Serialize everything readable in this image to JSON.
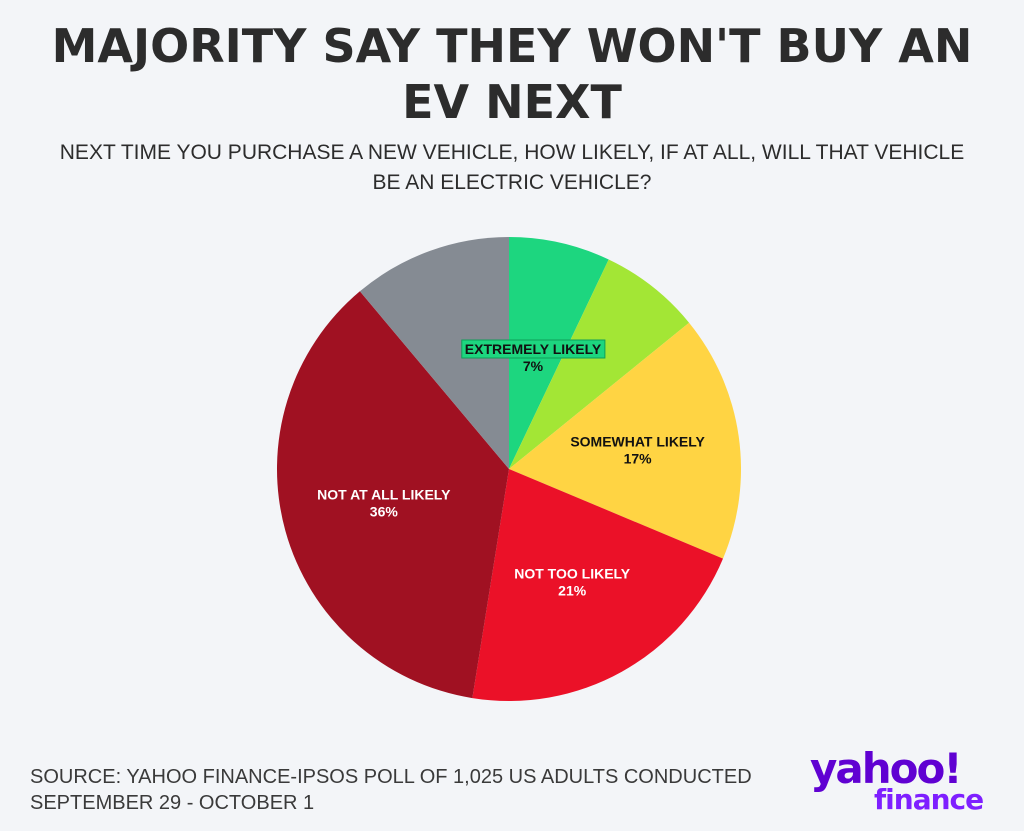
{
  "title": "MAJORITY SAY THEY WON'T BUY AN EV NEXT",
  "subtitle": "NEXT TIME YOU PURCHASE A NEW VEHICLE, HOW LIKELY, IF AT ALL, WILL THAT VEHICLE BE AN ELECTRIC VEHICLE?",
  "source": "SOURCE: YAHOO FINANCE-IPSOS POLL OF 1,025 US ADULTS CONDUCTED SEPTEMBER 29 - OCTOBER 1",
  "logo": {
    "brand": "yahoo!",
    "product": "finance",
    "color": "#6001d2"
  },
  "chart_data": {
    "type": "pie",
    "title": "MAJORITY SAY THEY WON'T BUY AN EV NEXT",
    "slices": [
      {
        "label": "EXTREMELY LIKELY",
        "value": 7,
        "value_label": "7%",
        "color": "#1dd67f",
        "text_color": "#111111",
        "label_visible": true,
        "label_highlight": "#1dd67f"
      },
      {
        "label": "",
        "value": 7,
        "value_label": "",
        "color": "#a3e635",
        "text_color": "#111111",
        "label_visible": false
      },
      {
        "label": "SOMEWHAT LIKELY",
        "value": 17,
        "value_label": "17%",
        "color": "#ffd443",
        "text_color": "#111111",
        "label_visible": true
      },
      {
        "label": "NOT TOO LIKELY",
        "value": 21,
        "value_label": "21%",
        "color": "#eb1128",
        "text_color": "#ffffff",
        "label_visible": true
      },
      {
        "label": "NOT AT ALL LIKELY",
        "value": 36,
        "value_label": "36%",
        "color": "#a01122",
        "text_color": "#ffffff",
        "label_visible": true
      },
      {
        "label": "",
        "value": 11,
        "value_label": "",
        "color": "#858b93",
        "text_color": "#ffffff",
        "label_visible": false
      }
    ],
    "start_angle": "12 o'clock",
    "direction": "clockwise",
    "legend": "none"
  }
}
